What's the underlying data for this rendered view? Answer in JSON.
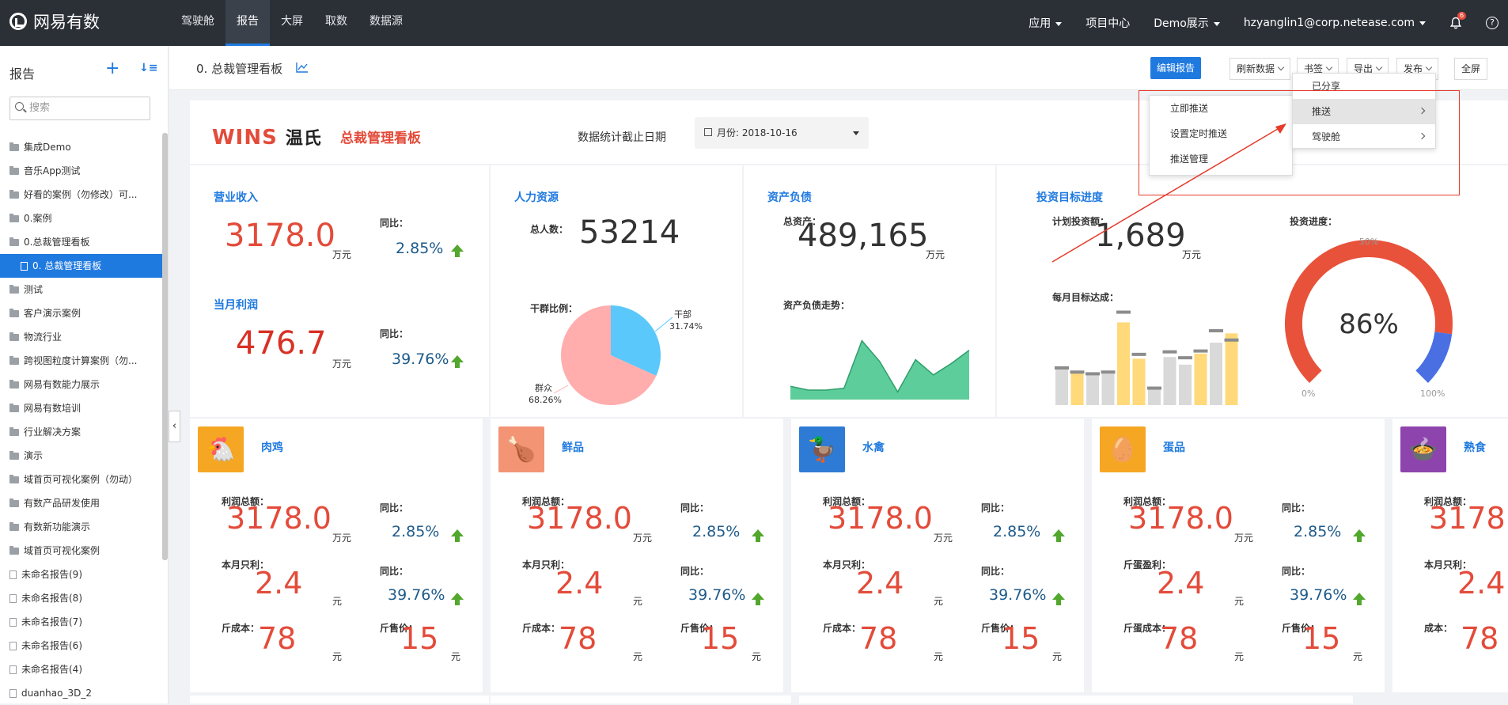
{
  "app": {
    "name": "网易有数"
  },
  "nav": {
    "items": [
      "驾驶舱",
      "报告",
      "大屏",
      "取数",
      "数据源"
    ],
    "active": 1
  },
  "topright": {
    "apps": "应用",
    "project_center": "项目中心",
    "demo": "Demo展示",
    "user": "hzyanglin1@corp.netease.com",
    "badge": "6"
  },
  "sidebar": {
    "title": "报告",
    "search_placeholder": "搜索",
    "items": [
      {
        "label": "集成Demo",
        "type": "folder"
      },
      {
        "label": "音乐App测试",
        "type": "folder"
      },
      {
        "label": "好看的案例（勿修改）可...",
        "type": "folder"
      },
      {
        "label": "0.案例",
        "type": "folder"
      },
      {
        "label": "0.总裁管理看板",
        "type": "folder"
      },
      {
        "label": "0. 总裁管理看板",
        "type": "doc",
        "active": true
      },
      {
        "label": "测试",
        "type": "folder"
      },
      {
        "label": "客户演示案例",
        "type": "folder"
      },
      {
        "label": "物流行业",
        "type": "folder"
      },
      {
        "label": "跨视图粒度计算案例（勿...",
        "type": "folder"
      },
      {
        "label": "网易有数能力展示",
        "type": "folder"
      },
      {
        "label": "网易有数培训",
        "type": "folder"
      },
      {
        "label": "行业解决方案",
        "type": "folder"
      },
      {
        "label": "演示",
        "type": "folder"
      },
      {
        "label": "域首页可视化案例（勿动）",
        "type": "folder"
      },
      {
        "label": "有数产品研发使用",
        "type": "folder"
      },
      {
        "label": "有数新功能演示",
        "type": "folder"
      },
      {
        "label": "域首页可视化案例",
        "type": "folder"
      },
      {
        "label": "未命名报告(9)",
        "type": "doc"
      },
      {
        "label": "未命名报告(8)",
        "type": "doc"
      },
      {
        "label": "未命名报告(7)",
        "type": "doc"
      },
      {
        "label": "未命名报告(6)",
        "type": "doc"
      },
      {
        "label": "未命名报告(4)",
        "type": "doc"
      },
      {
        "label": "duanhao_3D_2",
        "type": "doc"
      }
    ]
  },
  "toolbar": {
    "report_title": "0. 总裁管理看板",
    "edit": "编辑报告",
    "refresh": "刷新数据",
    "bookmark": "书签",
    "export": "导出",
    "publish": "发布",
    "fullscreen": "全屏"
  },
  "popup_publish": {
    "items": [
      "已分享",
      "推送",
      "驾驶舱"
    ]
  },
  "popup_push": {
    "items": [
      "立即推送",
      "设置定时推送",
      "推送管理"
    ]
  },
  "header": {
    "brand": "WINS",
    "brand_cn": "温氏",
    "board": "总裁管理看板",
    "date_label": "数据统计截止日期",
    "date_value": "月份: 2018-10-16"
  },
  "revenue": {
    "title": "营业收入",
    "value": "3178.0",
    "unit": "万元",
    "yoy_label": "同比：",
    "yoy": "2.85%",
    "profit_title": "当月利润",
    "profit": "476.7",
    "profit_unit": "万元",
    "profit_yoy_label": "同比：",
    "profit_yoy": "39.76%"
  },
  "hr": {
    "title": "人力资源",
    "total_label": "总人数：",
    "total": "53214",
    "ratio_label": "干群比例：",
    "slices": [
      {
        "name": "干部",
        "pct": "31.74%",
        "value": 31.74
      },
      {
        "name": "群众",
        "pct": "68.26%",
        "value": 68.26
      }
    ]
  },
  "assets": {
    "title": "资产负债",
    "total_label": "总资产：",
    "total": "489,165",
    "unit": "万元",
    "trend_label": "资产负债走势："
  },
  "invest": {
    "title": "投资目标进度",
    "plan_label": "计划投资额：",
    "plan": "1,689",
    "unit": "万元",
    "progress_label": "投资进度：",
    "monthly_label": "每月目标达成：",
    "progress": "86%",
    "progress_value": 86,
    "gauge_0": "0%",
    "gauge_50": "50%",
    "gauge_100": "100%"
  },
  "categories": [
    {
      "name": "肉鸡",
      "color": "#f5a623",
      "profit_label": "利润总额：",
      "profit": "3178.0",
      "unit": "万元",
      "yoy_label": "同比：",
      "yoy": "2.85%",
      "m_label": "本月只利：",
      "m_value": "2.4",
      "m_unit": "元",
      "m_yoy_label": "同比：",
      "m_yoy": "39.76%",
      "c_label": "斤成本：",
      "c_value": "78",
      "c_unit": "元",
      "p_label": "斤售价：",
      "p_value": "15",
      "p_unit": "元"
    },
    {
      "name": "鲜品",
      "color": "#f39475",
      "profit_label": "利润总额：",
      "profit": "3178.0",
      "unit": "万元",
      "yoy_label": "同比：",
      "yoy": "2.85%",
      "m_label": "本月只利：",
      "m_value": "2.4",
      "m_unit": "元",
      "m_yoy_label": "同比：",
      "m_yoy": "39.76%",
      "c_label": "斤成本：",
      "c_value": "78",
      "c_unit": "元",
      "p_label": "斤售价：",
      "p_value": "15",
      "p_unit": "元"
    },
    {
      "name": "水禽",
      "color": "#2e7bd6",
      "profit_label": "利润总额：",
      "profit": "3178.0",
      "unit": "万元",
      "yoy_label": "同比：",
      "yoy": "2.85%",
      "m_label": "本月只利：",
      "m_value": "2.4",
      "m_unit": "元",
      "m_yoy_label": "同比：",
      "m_yoy": "39.76%",
      "c_label": "斤成本：",
      "c_value": "78",
      "c_unit": "元",
      "p_label": "斤售价：",
      "p_value": "15",
      "p_unit": "元"
    },
    {
      "name": "蛋品",
      "color": "#f5a623",
      "profit_label": "利润总额：",
      "profit": "3178.0",
      "unit": "万元",
      "yoy_label": "同比：",
      "yoy": "2.85%",
      "m_label": "斤蛋盈利：",
      "m_value": "2.4",
      "m_unit": "元",
      "m_yoy_label": "同比：",
      "m_yoy": "39.76%",
      "c_label": "斤蛋成本：",
      "c_value": "78",
      "c_unit": "元",
      "p_label": "斤售价：",
      "p_value": "15",
      "p_unit": "元"
    },
    {
      "name": "熟食",
      "color": "#8e44ad",
      "profit_label": "利润总额：",
      "profit": "3178",
      "unit": "",
      "yoy_label": "",
      "yoy": "",
      "m_label": "本月只利：",
      "m_value": "2.4",
      "m_unit": "",
      "m_yoy_label": "",
      "m_yoy": "",
      "c_label": "成本：",
      "c_value": "78",
      "c_unit": "",
      "p_label": "",
      "p_value": "",
      "p_unit": ""
    }
  ],
  "colors": {
    "accent": "#1f7ae0",
    "value_red": "#e34b3a",
    "up_green": "#52a72d",
    "pie_a": "#5ac8fa",
    "pie_b": "#ffadad",
    "area": "#4bc890",
    "gauge_red": "#e8523a",
    "gauge_blue": "#4a6fe3",
    "bar_gray": "#d9d9d9",
    "bar_yellow": "#ffd97a"
  },
  "chart_data": [
    {
      "type": "pie",
      "categories": [
        "干部",
        "群众"
      ],
      "values": [
        31.74,
        68.26
      ]
    },
    {
      "type": "area",
      "x": [
        1,
        2,
        3,
        4,
        5,
        6,
        7,
        8,
        9,
        10,
        11
      ],
      "series": [
        {
          "values": [
            14,
            10,
            10,
            12,
            62,
            40,
            8,
            42,
            26,
            38,
            52
          ]
        }
      ],
      "ylim": [
        0,
        80
      ]
    },
    {
      "type": "bar",
      "x": [
        1,
        2,
        3,
        4,
        5,
        6,
        7,
        8,
        9,
        10,
        11,
        12
      ],
      "series": [
        {
          "values": [
            44,
            38,
            36,
            37,
            98,
            55,
            19,
            57,
            48,
            61,
            74,
            85
          ]
        },
        {
          "values": [
            46,
            41,
            39,
            41,
            112,
            62,
            22,
            65,
            58,
            66,
            90,
            79
          ]
        }
      ],
      "ylim": [
        0,
        120
      ]
    }
  ]
}
